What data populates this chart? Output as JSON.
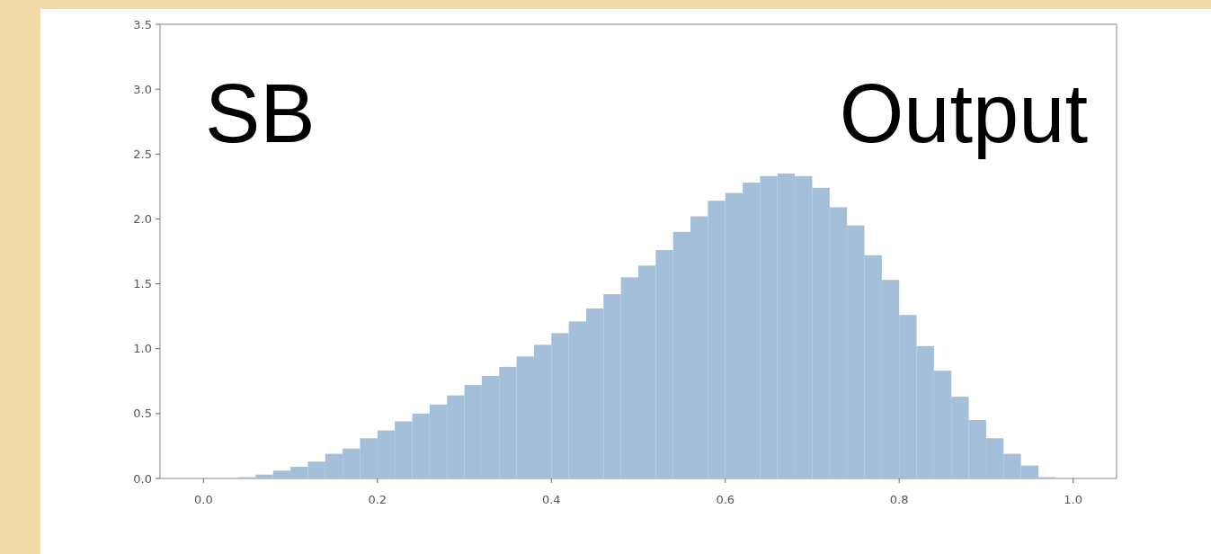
{
  "chart_data": {
    "type": "histogram",
    "bins": [
      0,
      0.02,
      0.04,
      0.06,
      0.08,
      0.1,
      0.12,
      0.14,
      0.16,
      0.18,
      0.2,
      0.22,
      0.24,
      0.26,
      0.28,
      0.3,
      0.32,
      0.34,
      0.36,
      0.38,
      0.4,
      0.42,
      0.44,
      0.46,
      0.48,
      0.5,
      0.52,
      0.54,
      0.56,
      0.58,
      0.6,
      0.62,
      0.64,
      0.66,
      0.68,
      0.7,
      0.72,
      0.74,
      0.76,
      0.78,
      0.8,
      0.82,
      0.84,
      0.86,
      0.88,
      0.9,
      0.92,
      0.94,
      0.96,
      0.98,
      1.0
    ],
    "values": [
      0,
      0,
      0.01,
      0.03,
      0.06,
      0.09,
      0.13,
      0.19,
      0.23,
      0.31,
      0.37,
      0.44,
      0.5,
      0.57,
      0.64,
      0.72,
      0.79,
      0.86,
      0.94,
      1.03,
      1.12,
      1.21,
      1.31,
      1.42,
      1.55,
      1.64,
      1.76,
      1.9,
      2.02,
      2.14,
      2.2,
      2.28,
      2.33,
      2.35,
      2.33,
      2.24,
      2.09,
      1.95,
      1.72,
      1.53,
      1.26,
      1.02,
      0.83,
      0.63,
      0.45,
      0.31,
      0.19,
      0.1,
      0.01,
      0
    ],
    "color": "#a3bfda",
    "xlim": [
      -0.05,
      1.05
    ],
    "xticks": [
      {
        "value": 0,
        "label": "0.0"
      },
      {
        "value": 0.2,
        "label": "0.2"
      },
      {
        "value": 0.4,
        "label": "0.4"
      },
      {
        "value": 0.6,
        "label": "0.6"
      },
      {
        "value": 0.8,
        "label": "0.8"
      },
      {
        "value": 1.0,
        "label": "1.0"
      }
    ],
    "ylim": [
      0,
      3.5
    ],
    "yticks": [
      {
        "value": 0,
        "label": "0.0"
      },
      {
        "value": 0.5,
        "label": "0.5"
      },
      {
        "value": 1.0,
        "label": "1.0"
      },
      {
        "value": 1.5,
        "label": "1.5"
      },
      {
        "value": 2.0,
        "label": "2.0"
      },
      {
        "value": 2.5,
        "label": "2.5"
      },
      {
        "value": 3.0,
        "label": "3.0"
      },
      {
        "value": 3.5,
        "label": "3.5"
      }
    ],
    "annotations": [
      "SB",
      "Output"
    ]
  }
}
